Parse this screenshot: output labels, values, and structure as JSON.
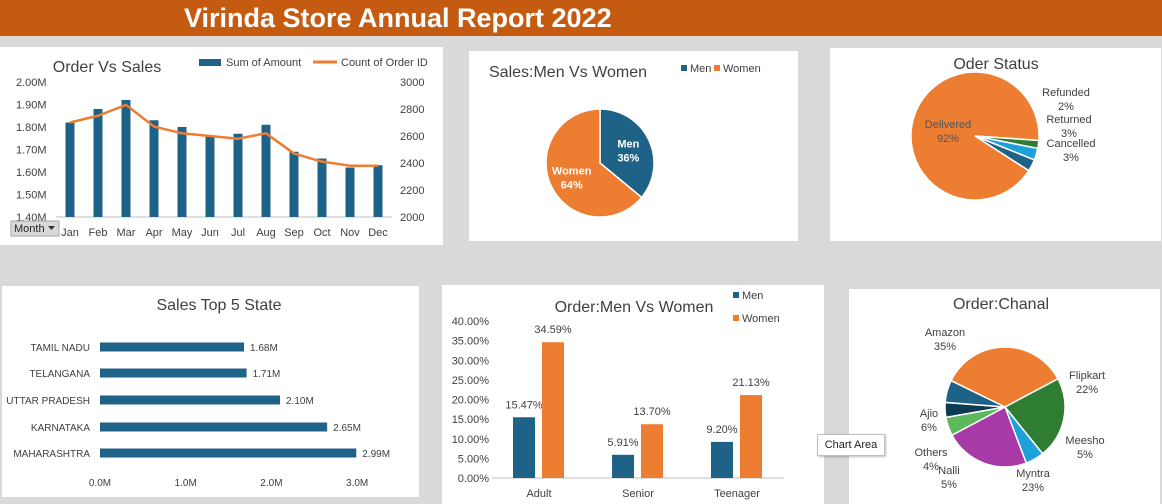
{
  "report": {
    "title": "Virinda Store Annual Report 2022"
  },
  "colors": {
    "banner": "#c55a11",
    "blue": "#1f6287",
    "orange": "#ed7d31"
  },
  "tooltip": {
    "label": "Chart Area"
  },
  "chart_data": [
    {
      "id": "order_vs_sales",
      "type": "bar",
      "title": "Order Vs Sales",
      "categories": [
        "Jan",
        "Feb",
        "Mar",
        "Apr",
        "May",
        "Jun",
        "Jul",
        "Aug",
        "Sep",
        "Oct",
        "Nov",
        "Dec"
      ],
      "series": [
        {
          "name": "Sum of Amount",
          "type": "bar",
          "axis": "left",
          "color": "#1f6287",
          "values": [
            1.82,
            1.88,
            1.92,
            1.83,
            1.8,
            1.76,
            1.77,
            1.81,
            1.69,
            1.66,
            1.62,
            1.63
          ]
        },
        {
          "name": "Count of Order ID",
          "type": "line",
          "axis": "right",
          "color": "#ed7d31",
          "values": [
            2700,
            2750,
            2830,
            2670,
            2620,
            2600,
            2580,
            2620,
            2470,
            2410,
            2380,
            2380
          ]
        }
      ],
      "y_left": {
        "min": 1.4,
        "max": 2.0,
        "ticks": [
          "2.00M",
          "1.90M",
          "1.80M",
          "1.70M",
          "1.60M",
          "1.50M",
          "1.40M"
        ]
      },
      "y_right": {
        "min": 2000,
        "max": 3000,
        "ticks": [
          "3000",
          "2800",
          "2600",
          "2400",
          "2200",
          "2000"
        ]
      },
      "filter_button": "Month",
      "legend": "top"
    },
    {
      "id": "sales_men_women",
      "type": "pie",
      "title": "Sales:Men Vs Women",
      "slices": [
        {
          "label": "Men",
          "value": 36,
          "display": "36%",
          "color": "#1f6287"
        },
        {
          "label": "Women",
          "value": 64,
          "display": "64%",
          "color": "#ed7d31"
        }
      ],
      "legend": "top"
    },
    {
      "id": "order_status",
      "type": "pie",
      "title": "Oder Status",
      "slices": [
        {
          "label": "Delivered",
          "value": 92,
          "display": "92%",
          "color": "#ed7d31"
        },
        {
          "label": "Refunded",
          "value": 2,
          "display": "2%",
          "color": "#2e7d32"
        },
        {
          "label": "Returned",
          "value": 3,
          "display": "3%",
          "color": "#1ea1d8"
        },
        {
          "label": "Cancelled",
          "value": 3,
          "display": "3%",
          "color": "#1f6287"
        }
      ]
    },
    {
      "id": "top5_states",
      "type": "bar",
      "orientation": "horizontal",
      "title": "Sales Top 5 State",
      "categories": [
        "TAMIL NADU",
        "TELANGANA",
        "UTTAR PRADESH",
        "KARNATAKA",
        "MAHARASHTRA"
      ],
      "values": [
        1.68,
        1.71,
        2.1,
        2.65,
        2.99
      ],
      "labels": [
        "1.68M",
        "1.71M",
        "2.10M",
        "2.65M",
        "2.99M"
      ],
      "xlim": [
        0,
        3.5
      ],
      "xticks": [
        "0.0M",
        "1.0M",
        "2.0M",
        "3.0M"
      ],
      "color": "#1f6287"
    },
    {
      "id": "order_men_women",
      "type": "bar",
      "title": "Order:Men Vs Women",
      "categories": [
        "Adult",
        "Senior",
        "Teenager"
      ],
      "series": [
        {
          "name": "Men",
          "color": "#1f6287",
          "values": [
            15.47,
            5.91,
            9.2
          ],
          "labels": [
            "15.47%",
            "5.91%",
            "9.20%"
          ]
        },
        {
          "name": "Women",
          "color": "#ed7d31",
          "values": [
            34.59,
            13.7,
            21.13
          ],
          "labels": [
            "34.59%",
            "13.70%",
            "21.13%"
          ]
        }
      ],
      "ylim": [
        0,
        40
      ],
      "yticks": [
        "40.00%",
        "35.00%",
        "30.00%",
        "25.00%",
        "20.00%",
        "15.00%",
        "10.00%",
        "5.00%",
        "0.00%"
      ],
      "legend": "top-right"
    },
    {
      "id": "order_channel",
      "type": "pie",
      "title": "Order:Chanal",
      "slices": [
        {
          "label": "Amazon",
          "value": 35,
          "display": "35%",
          "color": "#ed7d31"
        },
        {
          "label": "Flipkart",
          "value": 22,
          "display": "22%",
          "color": "#2e7d32"
        },
        {
          "label": "Meesho",
          "value": 5,
          "display": "5%",
          "color": "#1ea1d8"
        },
        {
          "label": "Myntra",
          "value": 23,
          "display": "23%",
          "color": "#a83aa8"
        },
        {
          "label": "Nalli",
          "value": 5,
          "display": "5%",
          "color": "#5cb85c"
        },
        {
          "label": "Others",
          "value": 4,
          "display": "4%",
          "color": "#0d3b52"
        },
        {
          "label": "Ajio",
          "value": 6,
          "display": "6%",
          "color": "#1f6287"
        }
      ]
    }
  ]
}
